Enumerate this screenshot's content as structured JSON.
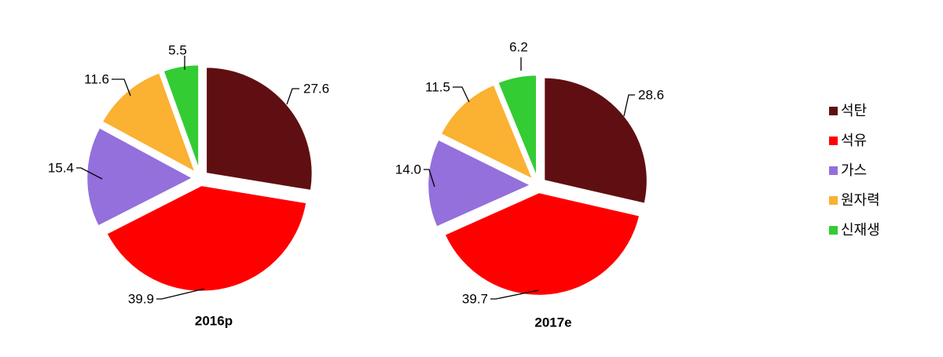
{
  "chart_data": {
    "type": "pie",
    "categories": [
      "석탄",
      "석유",
      "가스",
      "원자력",
      "신재생"
    ],
    "colors": {
      "석탄": "#5f0f11",
      "석유": "#ff0000",
      "가스": "#9370db",
      "원자력": "#fbb131",
      "신재생": "#33cc33"
    },
    "legend_position": "right",
    "pies": [
      {
        "title": "2016p",
        "values": [
          27.6,
          39.9,
          15.4,
          11.6,
          5.5
        ],
        "labels": [
          "27.6",
          "39.9",
          "15.4",
          "11.6",
          "5.5"
        ]
      },
      {
        "title": "2017e",
        "values": [
          28.6,
          39.7,
          14.0,
          11.5,
          6.2
        ],
        "labels": [
          "28.6",
          "39.7",
          "14.0",
          "11.5",
          "6.2"
        ]
      }
    ]
  }
}
